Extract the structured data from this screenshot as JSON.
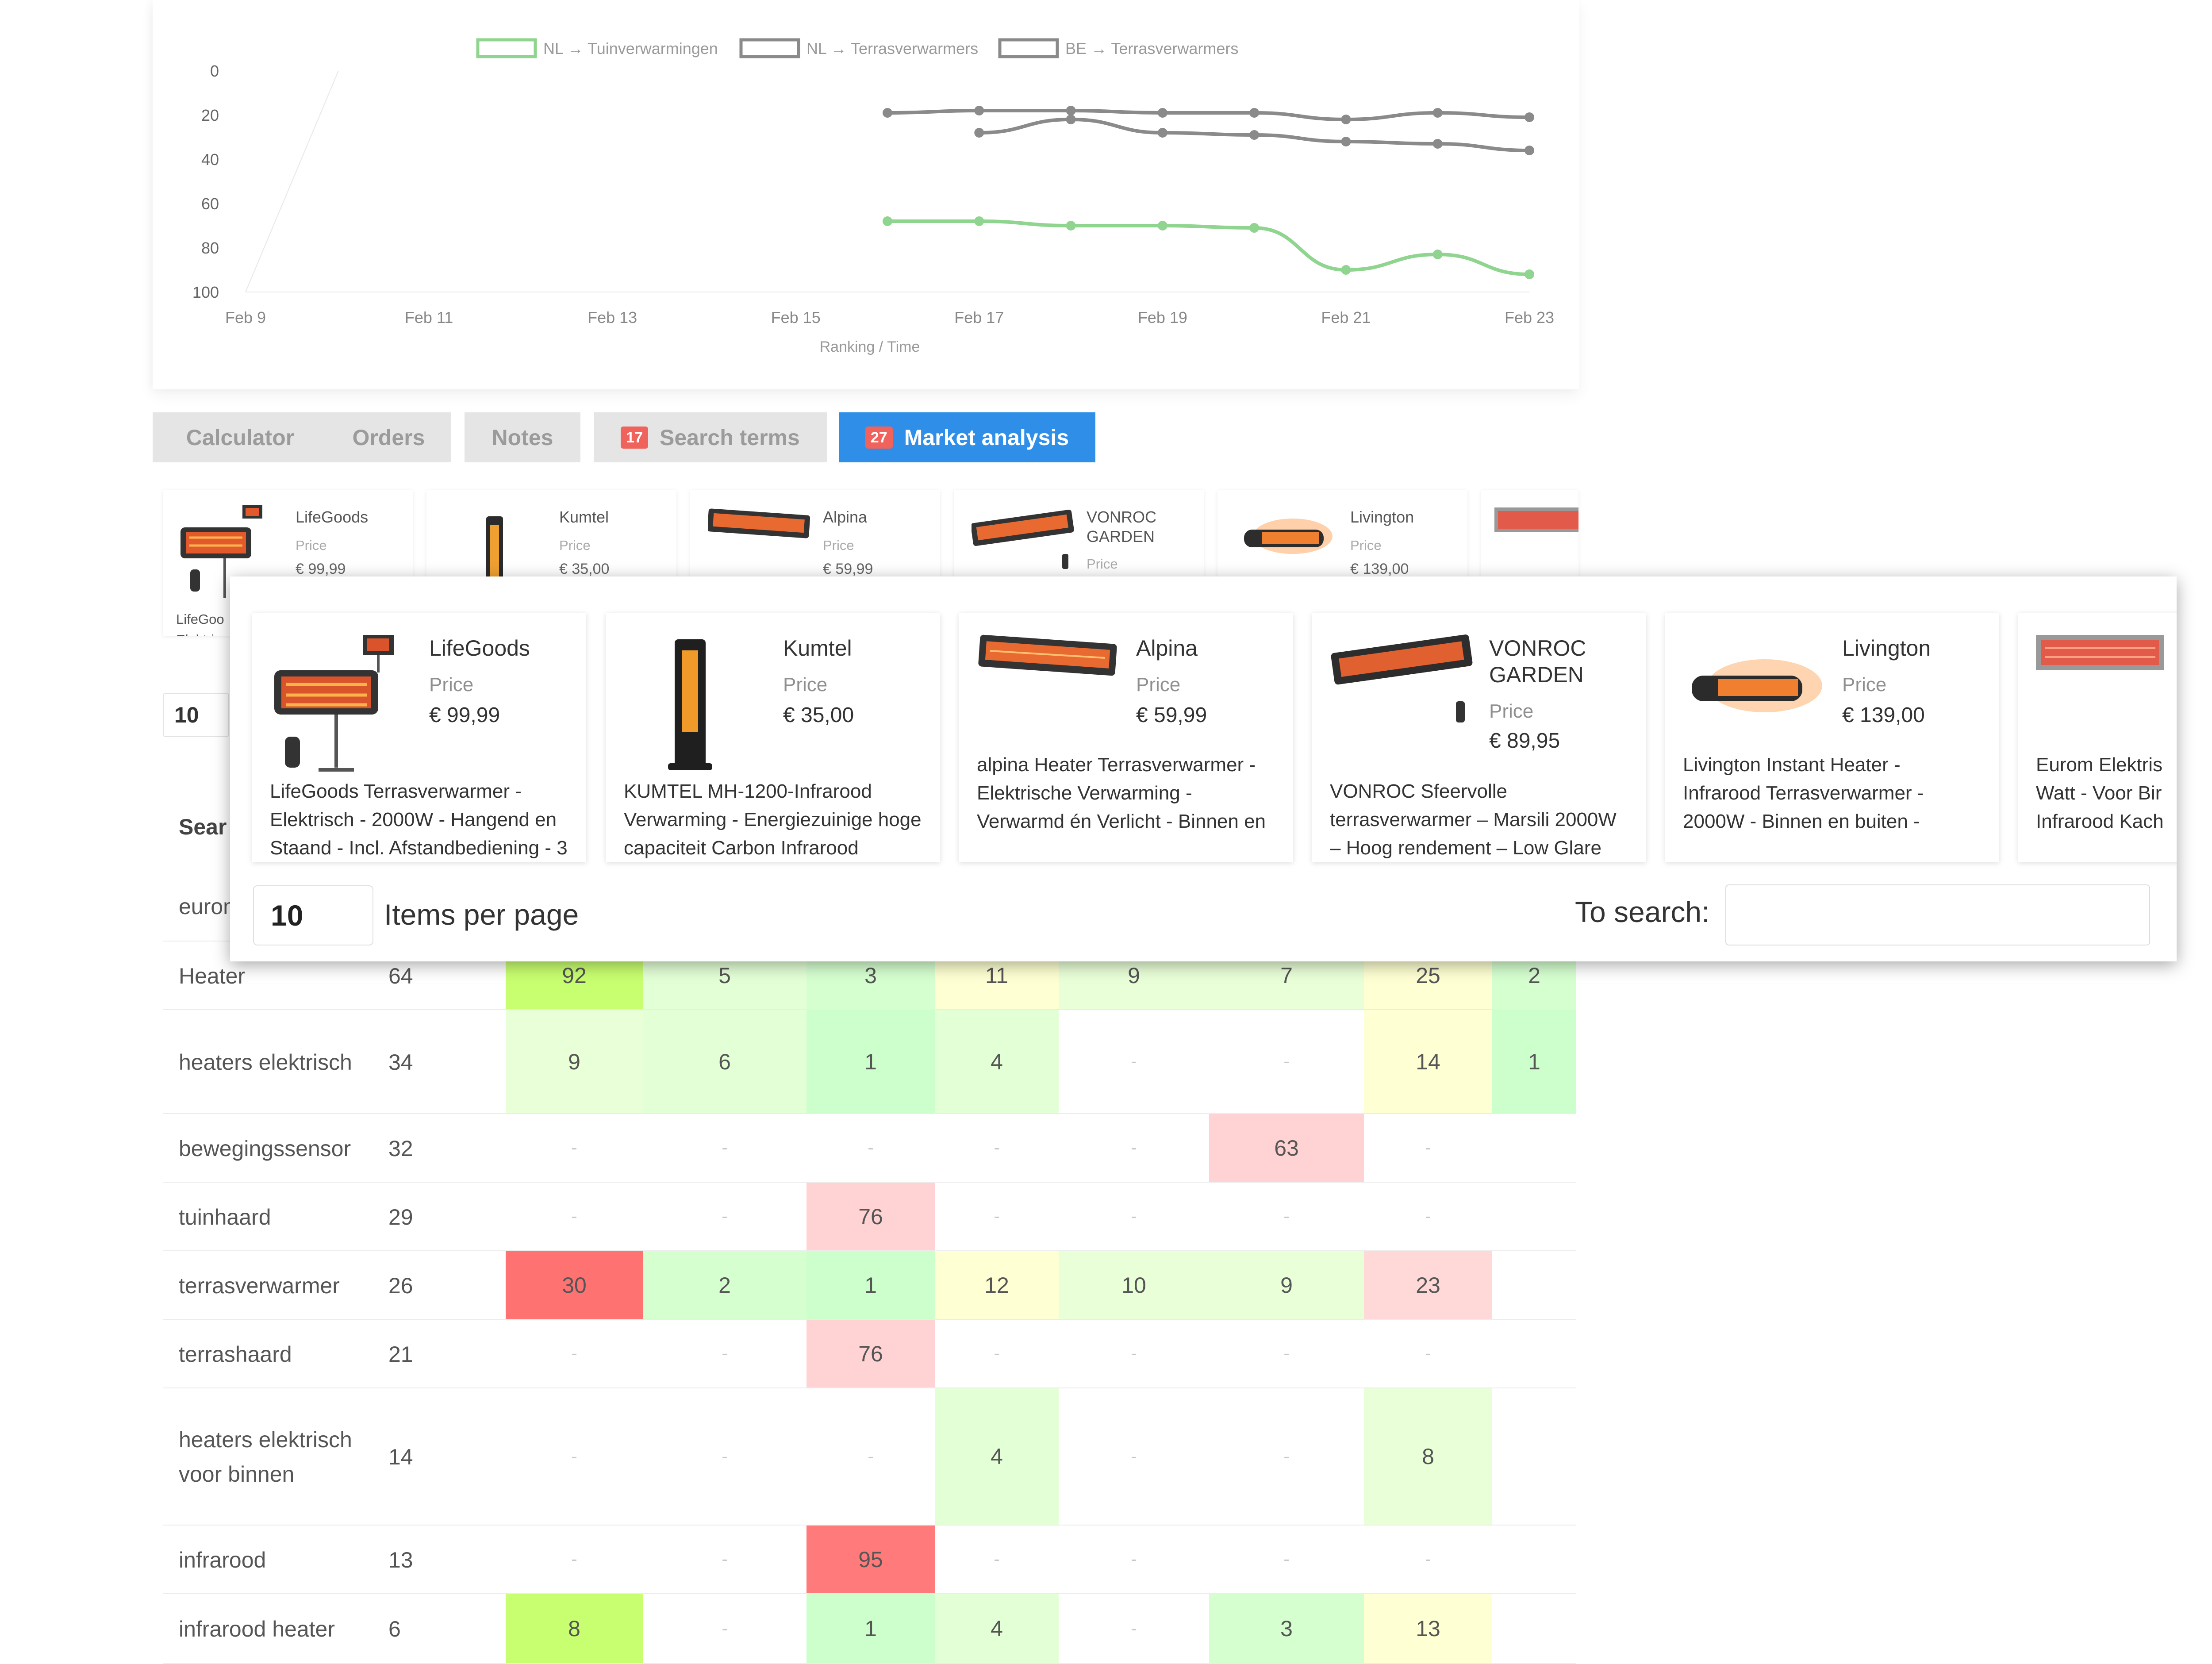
{
  "chart_data": {
    "type": "line",
    "x_ticks": [
      "Feb 9",
      "Feb 11",
      "Feb 13",
      "Feb 15",
      "Feb 17",
      "Feb 19",
      "Feb 21",
      "Feb 23"
    ],
    "y_ticks": [
      "0",
      "20",
      "40",
      "60",
      "80",
      "100"
    ],
    "ylim": [
      0,
      100
    ],
    "y_inverted": true,
    "xlabel": "Ranking / Time",
    "legend_position": "top",
    "series": [
      {
        "name": "NL → Tuinverwarmingen",
        "color": "#8fd48f",
        "x": [
          "Feb 16",
          "Feb 17",
          "Feb 18",
          "Feb 19",
          "Feb 20",
          "Feb 21",
          "Feb 22",
          "Feb 23"
        ],
        "values": [
          68,
          68,
          70,
          70,
          71,
          90,
          83,
          92
        ]
      },
      {
        "name": "NL → Terrasverwarmers",
        "color": "#8a8a8a",
        "x": [
          "Feb 16",
          "Feb 17",
          "Feb 18",
          "Feb 19",
          "Feb 20",
          "Feb 21",
          "Feb 22",
          "Feb 23"
        ],
        "values": [
          19,
          18,
          18,
          19,
          19,
          22,
          19,
          21
        ]
      },
      {
        "name": "BE → Terrasverwarmers",
        "color": "#8a8a8a",
        "x": [
          "Feb 17",
          "Feb 18",
          "Feb 19",
          "Feb 20",
          "Feb 21",
          "Feb 22",
          "Feb 23"
        ],
        "values": [
          28,
          22,
          28,
          29,
          32,
          33,
          36
        ]
      }
    ]
  },
  "tabs": [
    {
      "label": "Calculator",
      "badge": "",
      "active": false
    },
    {
      "label": "Orders",
      "badge": "",
      "active": false
    },
    {
      "label": "Notes",
      "badge": "",
      "active": false
    },
    {
      "label": "Search terms",
      "badge": "17",
      "active": false
    },
    {
      "label": "Market analysis",
      "badge": "27",
      "active": true
    }
  ],
  "bg_products": [
    {
      "brand": "LifeGoods",
      "price_label": "Price",
      "price": "€ 99,99",
      "desc": "LifeGoo Elektrisc Staand -"
    },
    {
      "brand": "Kumtel",
      "price_label": "Price",
      "price": "€ 35,00"
    },
    {
      "brand": "Alpina",
      "price_label": "Price",
      "price": "€ 59,99"
    },
    {
      "brand": "VONROC GARDEN",
      "price_label": "Price",
      "price": ""
    },
    {
      "brand": "Livington",
      "price_label": "Price",
      "price": "€ 139,00"
    }
  ],
  "bg_items_per_page": "10",
  "bg_table_header": "Sear",
  "bg_table_rows": [
    {
      "term": "eurom",
      "count": "",
      "cells": []
    },
    {
      "term": "Heater",
      "count": "64",
      "cells": [
        "92",
        "5",
        "3",
        "11",
        "9",
        "7",
        "25",
        "2"
      ]
    },
    {
      "term": "heaters elektrisch",
      "count": "34",
      "cells": [
        "9",
        "6",
        "1",
        "4",
        "-",
        "-",
        "14",
        "1"
      ]
    },
    {
      "term": "bewegingssensor",
      "count": "32",
      "cells": [
        "-",
        "-",
        "-",
        "-",
        "-",
        "63",
        "-",
        ""
      ]
    },
    {
      "term": "tuinhaard",
      "count": "29",
      "cells": [
        "-",
        "-",
        "76",
        "-",
        "-",
        "-",
        "-",
        ""
      ]
    },
    {
      "term": "terrasverwarmer",
      "count": "26",
      "cells": [
        "30",
        "2",
        "1",
        "12",
        "10",
        "9",
        "23",
        ""
      ]
    },
    {
      "term": "terrashaard",
      "count": "21",
      "cells": [
        "-",
        "-",
        "76",
        "-",
        "-",
        "-",
        "-",
        ""
      ]
    },
    {
      "term": "heaters elektrisch voor binnen",
      "count": "14",
      "cells": [
        "-",
        "-",
        "-",
        "4",
        "-",
        "-",
        "8",
        ""
      ]
    },
    {
      "term": "infrarood",
      "count": "13",
      "cells": [
        "-",
        "-",
        "95",
        "-",
        "-",
        "-",
        "-",
        ""
      ]
    },
    {
      "term": "infrarood heater",
      "count": "6",
      "cells": [
        "8",
        "-",
        "1",
        "4",
        "-",
        "3",
        "13",
        ""
      ]
    }
  ],
  "modal": {
    "products": [
      {
        "brand": "LifeGoods",
        "price_label": "Price",
        "price": "€ 99,99",
        "desc": "LifeGoods Terrasverwarmer - Elektrisch - 2000W - Hangend en Staand - Incl. Afstandbediening - 3"
      },
      {
        "brand": "Kumtel",
        "price_label": "Price",
        "price": "€ 35,00",
        "desc": "KUMTEL MH-1200-Infrarood Verwarming - Energiezuinige hoge capaciteit Carbon Infrarood"
      },
      {
        "brand": "Alpina",
        "price_label": "Price",
        "price": "€ 59,99",
        "desc": "alpina Heater Terrasverwarmer - Elektrische Verwarming - Verwarmd én Verlicht - Binnen en"
      },
      {
        "brand": "VONROC GARDEN",
        "price_label": "Price",
        "price": "€ 89,95",
        "desc": "VONROC Sfeervolle terrasverwarmer – Marsili 2000W – Hoog rendement – Low Glare"
      },
      {
        "brand": "Livington",
        "price_label": "Price",
        "price": "€ 139,00",
        "desc": "Livington Instant Heater - Infrarood Terrasverwarmer - 2000W - Binnen en buiten -"
      },
      {
        "brand": "",
        "price_label": "",
        "price": "",
        "desc": "Eurom Elektris Watt - Voor Bir Infrarood Kach"
      }
    ],
    "items_per_page_value": "10",
    "items_per_page_label": "Items per page",
    "search_label": "To search:",
    "search_value": ""
  }
}
